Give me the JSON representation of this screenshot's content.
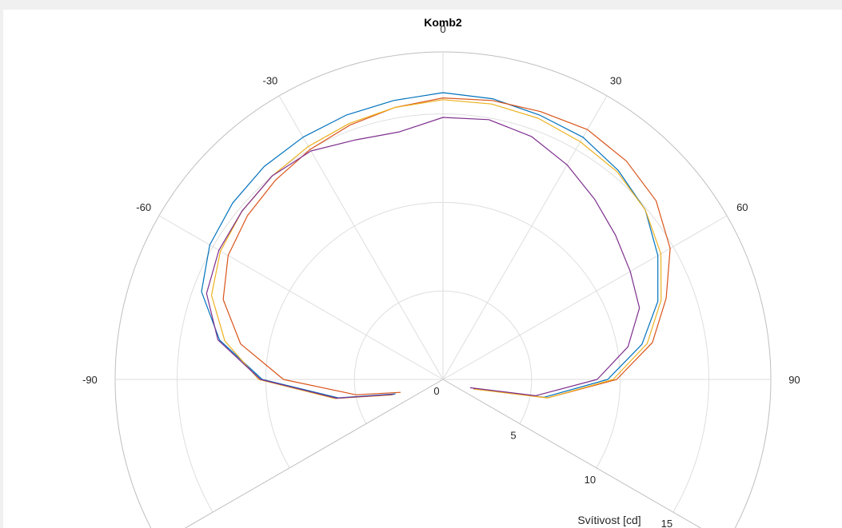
{
  "chart_data": {
    "type": "polar-line",
    "title": "Komb2",
    "theta_ticks": [
      -90,
      -60,
      -30,
      0,
      30,
      60,
      90
    ],
    "theta_limits": [
      -120,
      120
    ],
    "theta_zero_location": "top",
    "theta_direction": "clockwise",
    "r_ticks": [
      0,
      5,
      10,
      15
    ],
    "r_limits": [
      0,
      18.5
    ],
    "r_label": "Svítivost [cd]",
    "grid": true,
    "series": [
      {
        "color": "#0072BD",
        "theta": [
          -107,
          -100,
          -90,
          -80,
          -70,
          -60,
          -50,
          -40,
          -30,
          -20,
          -10,
          0,
          10,
          20,
          30,
          40,
          50,
          60,
          70,
          80,
          90,
          100,
          107
        ],
        "r": [
          2.8,
          6.0,
          10.2,
          12.8,
          14.5,
          15.2,
          15.5,
          15.7,
          15.8,
          15.9,
          16.0,
          16.2,
          16.1,
          15.9,
          15.8,
          15.4,
          14.9,
          14.0,
          12.9,
          11.4,
          9.3,
          5.8,
          1.8
        ]
      },
      {
        "color": "#D95319",
        "theta": [
          -107,
          -100,
          -90,
          -80,
          -70,
          -60,
          -50,
          -40,
          -30,
          -20,
          -10,
          0,
          10,
          20,
          30,
          40,
          50,
          60,
          70,
          80,
          90,
          100,
          107
        ],
        "r": [
          2.5,
          5.0,
          9.0,
          11.6,
          13.2,
          14.0,
          14.4,
          14.7,
          15.0,
          15.3,
          15.6,
          15.9,
          16.0,
          16.1,
          16.3,
          16.1,
          15.7,
          14.8,
          13.4,
          12.0,
          9.8,
          6.0,
          1.8
        ]
      },
      {
        "color": "#EDB120",
        "theta": [
          -107,
          -100,
          -90,
          -80,
          -70,
          -60,
          -50,
          -40,
          -30,
          -20,
          -10,
          0,
          10,
          20,
          30,
          40,
          50,
          60,
          70,
          80,
          90,
          100,
          107
        ],
        "r": [
          3.0,
          6.2,
          10.4,
          12.5,
          13.9,
          14.5,
          14.8,
          15.0,
          15.2,
          15.4,
          15.6,
          15.8,
          15.8,
          15.7,
          15.5,
          15.3,
          14.9,
          14.2,
          13.1,
          11.7,
          9.6,
          6.0,
          1.9
        ]
      },
      {
        "color": "#7E2F8E",
        "theta": [
          -107,
          -100,
          -90,
          -80,
          -70,
          -60,
          -50,
          -40,
          -30,
          -20,
          -10,
          0,
          10,
          20,
          30,
          40,
          50,
          60,
          70,
          80,
          90,
          100,
          107
        ],
        "r": [
          2.9,
          6.1,
          10.3,
          12.9,
          14.2,
          14.6,
          14.8,
          15.0,
          14.9,
          14.4,
          14.2,
          14.8,
          14.9,
          14.6,
          14.0,
          13.3,
          12.7,
          12.2,
          11.8,
          10.6,
          8.7,
          5.3,
          1.6
        ]
      }
    ]
  }
}
